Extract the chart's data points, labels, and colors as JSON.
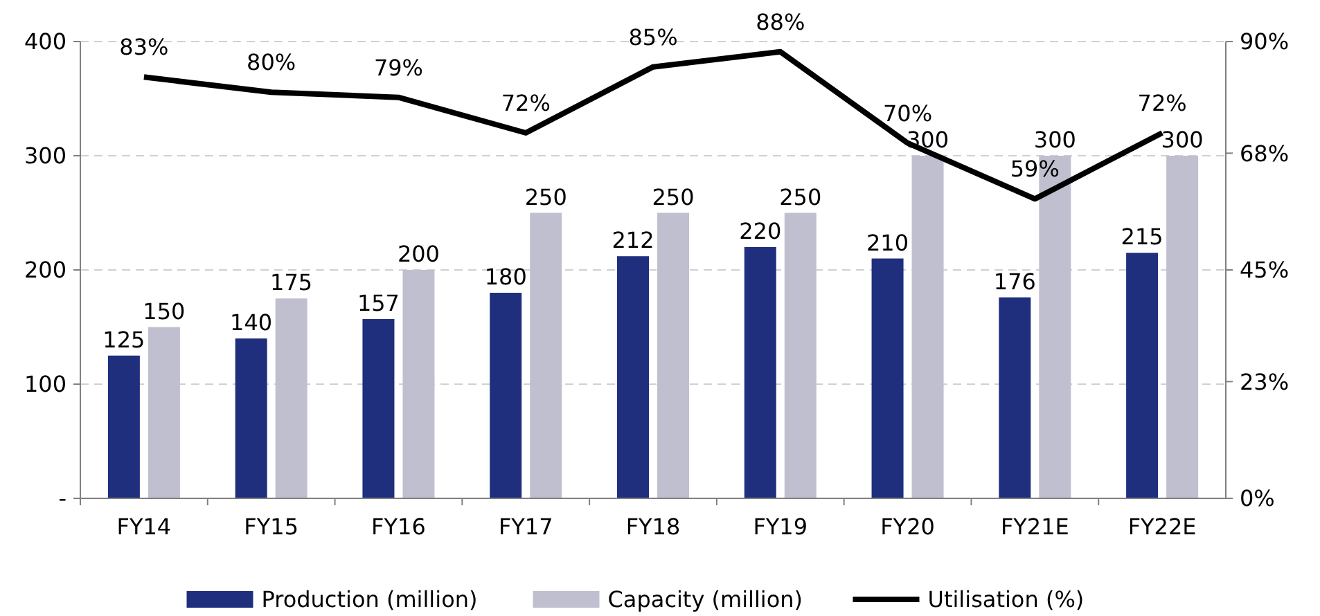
{
  "chart_data": {
    "type": "bar",
    "categories": [
      "FY14",
      "FY15",
      "FY16",
      "FY17",
      "FY18",
      "FY19",
      "FY20",
      "FY21E",
      "FY22E"
    ],
    "series": [
      {
        "name": "Production (million)",
        "color": "#1f2f7d",
        "values": [
          125,
          140,
          157,
          180,
          212,
          220,
          210,
          176,
          215
        ]
      },
      {
        "name": "Capacity (million)",
        "color": "#c0bfcf",
        "values": [
          150,
          175,
          200,
          250,
          250,
          250,
          300,
          300,
          300
        ]
      },
      {
        "name": "Utilisation (%)",
        "type": "line",
        "axis": "y2",
        "color": "#000000",
        "values": [
          83,
          80,
          79,
          72,
          85,
          88,
          70,
          59,
          72
        ],
        "value_labels": [
          "83%",
          "80%",
          "79%",
          "72%",
          "85%",
          "88%",
          "70%",
          "59%",
          "72%"
        ]
      }
    ],
    "ylim": [
      0,
      400
    ],
    "yticks": [
      {
        "value": 0,
        "label": "-"
      },
      100,
      200,
      300,
      400
    ],
    "y2lim": [
      0,
      90
    ],
    "y2ticks": [
      {
        "value": 0,
        "label": "0%"
      },
      {
        "value": 23,
        "label": "23%"
      },
      {
        "value": 45,
        "label": "45%"
      },
      {
        "value": 68,
        "label": "68%"
      },
      {
        "value": 90,
        "label": "90%"
      }
    ],
    "grid": "y",
    "legend": "bottom",
    "data_labels": true
  }
}
